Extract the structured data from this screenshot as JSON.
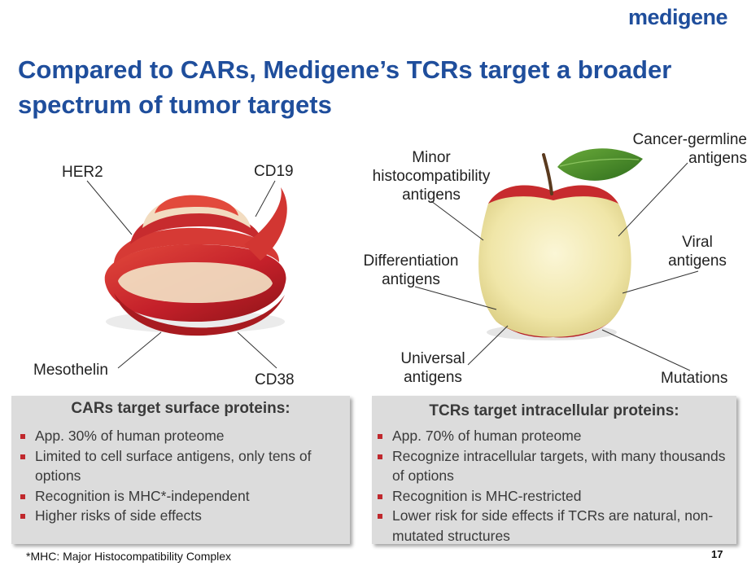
{
  "logo": "medigene",
  "title": "Compared to CARs, Medigene’s TCRs target a broader spectrum of tumor targets",
  "left_labels": {
    "her2": "HER2",
    "cd19": "CD19",
    "mesothelin": "Mesothelin",
    "cd38": "CD38"
  },
  "right_labels": {
    "minor": "Minor histocompatibility antigens",
    "cancer_germline": "Cancer-germline antigens",
    "differentiation": "Differentiation antigens",
    "viral": "Viral antigens",
    "universal": "Universal antigens",
    "mutations": "Mutations"
  },
  "cars_panel": {
    "heading": "CARs target surface proteins:",
    "items": [
      "App. 30% of human proteome",
      "Limited to cell surface antigens, only tens of options",
      "Recognition is MHC*-independent",
      "Higher risks of side effects"
    ]
  },
  "tcrs_panel": {
    "heading": "TCRs target intracellular proteins:",
    "items": [
      "App. 70% of human proteome",
      "Recognize intracellular targets, with many thousands of options",
      "Recognition is MHC-restricted",
      "Lower risk for side effects if TCRs are natural, non-mutated structures"
    ]
  },
  "footnote": "*MHC: Major Histocompatibility Complex",
  "page_number": "17",
  "colors": {
    "brand_blue": "#1f4e9c",
    "bullet_red": "#c0282d",
    "panel_gray": "#dcdcdc"
  }
}
